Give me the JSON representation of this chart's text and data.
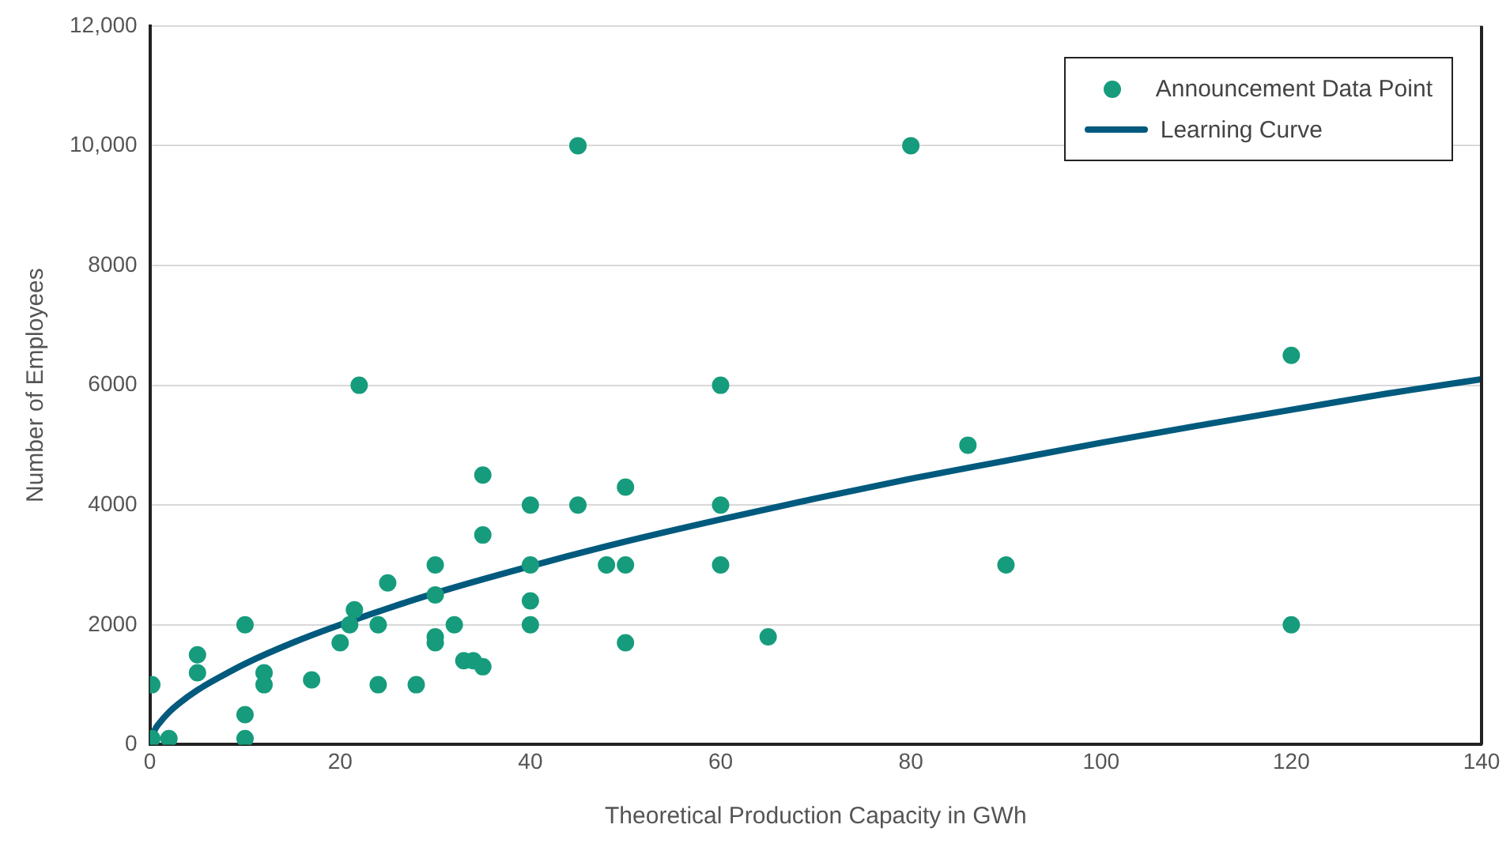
{
  "chart_data": {
    "type": "scatter",
    "xlabel": "Theoretical Production Capacity in GWh",
    "ylabel": "Number of Employees",
    "xlim": [
      0,
      140
    ],
    "xticks": [
      0,
      20,
      40,
      60,
      80,
      100,
      120,
      140
    ],
    "ylim": [
      0,
      12000
    ],
    "yticks": [
      0,
      2000,
      4000,
      6000,
      8000,
      {
        "value": 10000,
        "label": "10,000"
      },
      {
        "value": 12000,
        "label": "12,000"
      }
    ],
    "grid": "y",
    "legend": "top right",
    "marker": "circle",
    "series": [
      {
        "name": "Announcement Data Point",
        "color": "#169c7c",
        "x": [
          0.2,
          0.2,
          2,
          5,
          5,
          10,
          10,
          10,
          12,
          12,
          17,
          20,
          21,
          21.5,
          22,
          24,
          24,
          25,
          28,
          30,
          30,
          30,
          30,
          32,
          33,
          34,
          35,
          35,
          35,
          40,
          40,
          40,
          40,
          45,
          45,
          48,
          50,
          50,
          50,
          60,
          60,
          60,
          65,
          80,
          86,
          90,
          120,
          120
        ],
        "values": [
          1000,
          100,
          100,
          1500,
          1200,
          2000,
          500,
          100,
          1200,
          1000,
          1080,
          1700,
          2000,
          2250,
          6000,
          2000,
          1000,
          2700,
          1000,
          3000,
          2500,
          1800,
          1700,
          2000,
          1400,
          1400,
          1300,
          4500,
          3500,
          4000,
          3000,
          2400,
          2000,
          10000,
          4000,
          3000,
          4300,
          3000,
          1700,
          6000,
          4000,
          3000,
          1800,
          10000,
          5000,
          3000,
          6500,
          2000
        ]
      },
      {
        "name": "Learning Curve",
        "type": "line",
        "color": "#005a7d",
        "marker": "none",
        "x": [
          0,
          0.5,
          1,
          2,
          3,
          5,
          7.5,
          10,
          15,
          20,
          30,
          40,
          50,
          60,
          70,
          80,
          90,
          100,
          110,
          120,
          130,
          140
        ],
        "values": [
          0,
          240,
          360,
          540,
          680,
          910,
          1140,
          1350,
          1700,
          2000,
          2530,
          2980,
          3390,
          3760,
          4110,
          4440,
          4740,
          5040,
          5320,
          5590,
          5860,
          6100
        ]
      }
    ]
  }
}
